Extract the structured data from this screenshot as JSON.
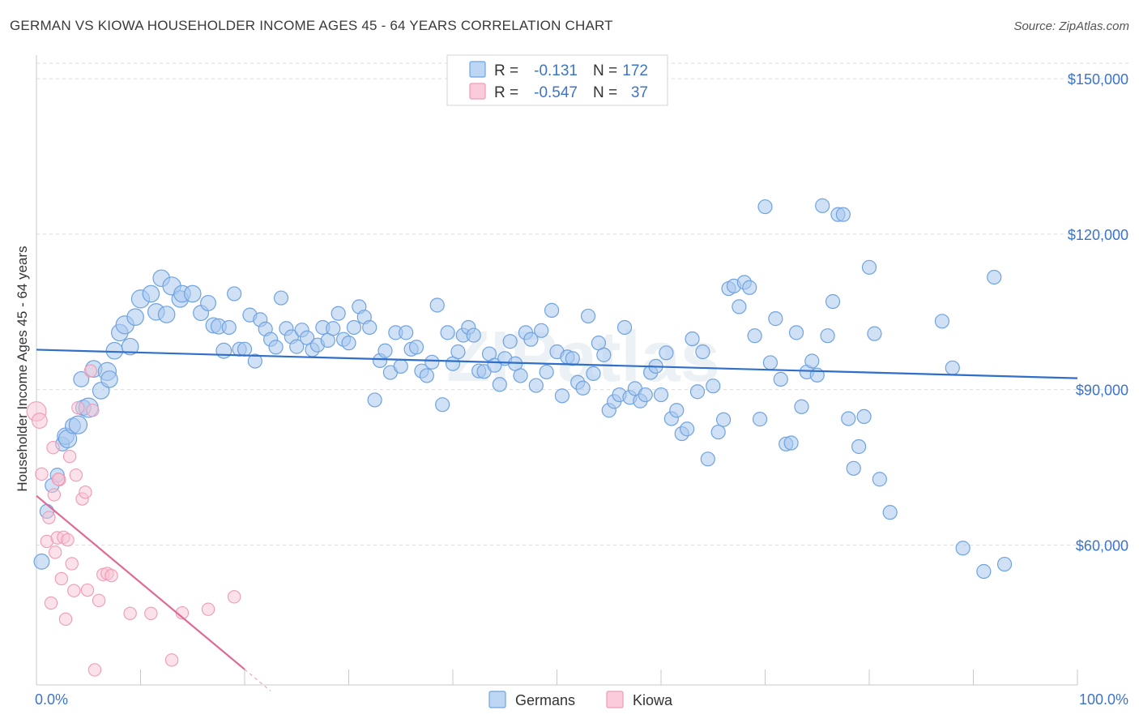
{
  "header": {
    "title": "GERMAN VS KIOWA HOUSEHOLDER INCOME AGES 45 - 64 YEARS CORRELATION CHART",
    "source": "Source: ZipAtlas.com"
  },
  "watermark": "ZIPatlas",
  "legend": {
    "rows": [
      {
        "r_label": "R =",
        "r_value": "-0.131",
        "n_label": "N =",
        "n_value": "172",
        "color": "#a8c8f0"
      },
      {
        "r_label": "R =",
        "r_value": "-0.547",
        "n_label": "N =",
        "n_value": "37",
        "color": "#f4b6c9"
      }
    ]
  },
  "bottom_legend": [
    {
      "label": "Germans",
      "color": "#a8c8f0"
    },
    {
      "label": "Kiowa",
      "color": "#f4b6c9"
    }
  ],
  "chart_data": {
    "type": "scatter",
    "title": "GERMAN VS KIOWA HOUSEHOLDER INCOME AGES 45 - 64 YEARS CORRELATION CHART",
    "xlabel": "",
    "ylabel": "Householder Income Ages 45 - 64 years",
    "xlim": [
      0,
      100
    ],
    "ylim": [
      33000,
      153000
    ],
    "x_tick_labels": [
      "0.0%",
      "100.0%"
    ],
    "y_ticks": [
      60000,
      90000,
      120000,
      150000
    ],
    "y_tick_labels": [
      "$60,000",
      "$90,000",
      "$120,000",
      "$150,000"
    ],
    "grid": true,
    "legend_position": "top-center",
    "colors": {
      "germans": "#6fa3e0",
      "germans_line": "#2f6fc9",
      "kiowa": "#f09ab6",
      "kiowa_line": "#e06a95"
    },
    "series": [
      {
        "name": "Germans",
        "trend": {
          "x": [
            0,
            100
          ],
          "y": [
            97700,
            92200
          ]
        },
        "points": [
          [
            0.5,
            56800,
            11
          ],
          [
            1.0,
            66500,
            10
          ],
          [
            1.5,
            71500,
            10
          ],
          [
            2,
            73500,
            10
          ],
          [
            2.5,
            79500,
            10
          ],
          [
            2.8,
            81000,
            12
          ],
          [
            3,
            80500,
            13
          ],
          [
            3.5,
            83000,
            11
          ],
          [
            4,
            83200,
            13
          ],
          [
            4.5,
            86500,
            11
          ],
          [
            5,
            86500,
            14
          ],
          [
            4.3,
            92000,
            11
          ],
          [
            5.5,
            94000,
            12
          ],
          [
            6.2,
            89800,
            12
          ],
          [
            6.8,
            93500,
            13
          ],
          [
            7,
            92000,
            12
          ],
          [
            7.5,
            97500,
            12
          ],
          [
            8,
            101000,
            12
          ],
          [
            8.5,
            102500,
            13
          ],
          [
            9,
            98300,
            12
          ],
          [
            9.5,
            104000,
            12
          ],
          [
            10,
            107500,
            13
          ],
          [
            11,
            108500,
            12
          ],
          [
            11.5,
            105000,
            12
          ],
          [
            12,
            111500,
            12
          ],
          [
            12.5,
            104500,
            12
          ],
          [
            13,
            110000,
            13
          ],
          [
            13.8,
            107500,
            12
          ],
          [
            14,
            108500,
            12
          ],
          [
            15,
            108500,
            12
          ],
          [
            15.8,
            104800,
            11
          ],
          [
            16.5,
            106700,
            11
          ],
          [
            17,
            102400,
            11
          ],
          [
            17.5,
            102200,
            11
          ],
          [
            18,
            97500,
            11
          ],
          [
            18.5,
            102000,
            10
          ],
          [
            19,
            108500,
            10
          ],
          [
            19.5,
            97800,
            10
          ],
          [
            20,
            97800,
            10
          ],
          [
            20.5,
            104400,
            10
          ],
          [
            21,
            95500,
            10
          ],
          [
            21.5,
            103500,
            10
          ],
          [
            22,
            101700,
            10
          ],
          [
            22.5,
            99700,
            10
          ],
          [
            23,
            98200,
            10
          ],
          [
            23.5,
            107700,
            10
          ],
          [
            24,
            101800,
            10
          ],
          [
            24.5,
            100200,
            10
          ],
          [
            25,
            98300,
            10
          ],
          [
            25.5,
            101500,
            10
          ],
          [
            26,
            100000,
            10
          ],
          [
            26.5,
            97700,
            10
          ],
          [
            27,
            98600,
            10
          ],
          [
            27.5,
            102000,
            10
          ],
          [
            28,
            99500,
            10
          ],
          [
            28.5,
            101800,
            10
          ],
          [
            29,
            104700,
            10
          ],
          [
            29.5,
            99700,
            10
          ],
          [
            30,
            99000,
            10
          ],
          [
            30.5,
            102000,
            10
          ],
          [
            31,
            106000,
            10
          ],
          [
            31.5,
            104000,
            10
          ],
          [
            32,
            102000,
            10
          ],
          [
            32.5,
            88000,
            10
          ],
          [
            33,
            95600,
            10
          ],
          [
            33.5,
            97500,
            10
          ],
          [
            34,
            93300,
            10
          ],
          [
            34.5,
            101000,
            10
          ],
          [
            35,
            94500,
            10
          ],
          [
            35.5,
            101000,
            10
          ],
          [
            36,
            97800,
            10
          ],
          [
            36.5,
            98200,
            10
          ],
          [
            37,
            93600,
            10
          ],
          [
            37.5,
            92700,
            10
          ],
          [
            38,
            95300,
            10
          ],
          [
            38.5,
            106300,
            10
          ],
          [
            39,
            87100,
            10
          ],
          [
            39.5,
            101000,
            10
          ],
          [
            40,
            95000,
            10
          ],
          [
            40.5,
            97300,
            10
          ],
          [
            41,
            100500,
            10
          ],
          [
            41.5,
            102000,
            10
          ],
          [
            42,
            100500,
            10
          ],
          [
            42.5,
            93600,
            10
          ],
          [
            43,
            93500,
            10
          ],
          [
            43.5,
            96900,
            10
          ],
          [
            44,
            94700,
            10
          ],
          [
            44.5,
            91000,
            10
          ],
          [
            45,
            96000,
            10
          ],
          [
            45.5,
            99300,
            10
          ],
          [
            46,
            95000,
            10
          ],
          [
            46.5,
            92700,
            10
          ],
          [
            47,
            101000,
            10
          ],
          [
            47.5,
            99700,
            10
          ],
          [
            48,
            90800,
            10
          ],
          [
            48.5,
            101400,
            10
          ],
          [
            49,
            93400,
            10
          ],
          [
            49.5,
            105300,
            10
          ],
          [
            50,
            97300,
            10
          ],
          [
            50.5,
            88800,
            10
          ],
          [
            51,
            96300,
            10
          ],
          [
            51.5,
            96000,
            10
          ],
          [
            52,
            91400,
            10
          ],
          [
            52.5,
            90300,
            10
          ],
          [
            53,
            104200,
            10
          ],
          [
            53.5,
            93100,
            10
          ],
          [
            54,
            99000,
            10
          ],
          [
            54.5,
            96700,
            10
          ],
          [
            55,
            86000,
            10
          ],
          [
            55.5,
            87700,
            10
          ],
          [
            56,
            89000,
            10
          ],
          [
            56.5,
            102000,
            10
          ],
          [
            57,
            88500,
            10
          ],
          [
            57.5,
            90200,
            10
          ],
          [
            58,
            87800,
            10
          ],
          [
            58.5,
            89000,
            10
          ],
          [
            59,
            93300,
            10
          ],
          [
            59.5,
            94500,
            10
          ],
          [
            60,
            89000,
            10
          ],
          [
            60.5,
            97100,
            10
          ],
          [
            61,
            84400,
            10
          ],
          [
            61.5,
            86000,
            10
          ],
          [
            62,
            81500,
            10
          ],
          [
            62.5,
            82400,
            10
          ],
          [
            63,
            99800,
            10
          ],
          [
            63.5,
            89600,
            10
          ],
          [
            64,
            97300,
            10
          ],
          [
            64.5,
            76600,
            10
          ],
          [
            65,
            90700,
            10
          ],
          [
            65.5,
            81800,
            10
          ],
          [
            66,
            84200,
            10
          ],
          [
            66.5,
            109500,
            10
          ],
          [
            67,
            110000,
            10
          ],
          [
            67.5,
            106000,
            10
          ],
          [
            68,
            110700,
            10
          ],
          [
            68.5,
            109700,
            10
          ],
          [
            69,
            100400,
            10
          ],
          [
            69.5,
            84300,
            10
          ],
          [
            70,
            125300,
            10
          ],
          [
            70.5,
            95200,
            10
          ],
          [
            71,
            103700,
            10
          ],
          [
            71.5,
            92000,
            10
          ],
          [
            72,
            79500,
            10
          ],
          [
            72.5,
            79700,
            10
          ],
          [
            73,
            101000,
            10
          ],
          [
            73.5,
            86700,
            10
          ],
          [
            74,
            93400,
            10
          ],
          [
            74.5,
            95500,
            10
          ],
          [
            75,
            92800,
            10
          ],
          [
            75.5,
            125500,
            10
          ],
          [
            76,
            100400,
            10
          ],
          [
            76.5,
            107000,
            10
          ],
          [
            77,
            123800,
            10
          ],
          [
            77.5,
            123800,
            10
          ],
          [
            78,
            84400,
            10
          ],
          [
            78.5,
            74800,
            10
          ],
          [
            79,
            79000,
            10
          ],
          [
            79.5,
            84800,
            10
          ],
          [
            80,
            113600,
            10
          ],
          [
            80.5,
            100800,
            10
          ],
          [
            81,
            72700,
            10
          ],
          [
            82,
            66300,
            10
          ],
          [
            87,
            103200,
            10
          ],
          [
            88,
            94200,
            10
          ],
          [
            89,
            59400,
            10
          ],
          [
            91,
            54900,
            10
          ],
          [
            92,
            111700,
            10
          ],
          [
            93,
            56300,
            10
          ]
        ]
      },
      {
        "name": "Kiowa",
        "trend": {
          "x": [
            0,
            20
          ],
          "y": [
            69500,
            36000
          ]
        },
        "points": [
          [
            0,
            85800,
            14
          ],
          [
            0.3,
            84000,
            11
          ],
          [
            0.5,
            73700,
            9
          ],
          [
            1,
            60700,
            9
          ],
          [
            1.2,
            65300,
            9
          ],
          [
            1.4,
            48800,
            9
          ],
          [
            1.6,
            78800,
            9
          ],
          [
            1.8,
            58600,
            9
          ],
          [
            2,
            61400,
            9
          ],
          [
            2.2,
            72600,
            9
          ],
          [
            2.4,
            53500,
            9
          ],
          [
            2.6,
            61500,
            9
          ],
          [
            2.8,
            45700,
            9
          ],
          [
            3,
            61000,
            9
          ],
          [
            3.2,
            77100,
            9
          ],
          [
            3.4,
            56400,
            9
          ],
          [
            3.6,
            51200,
            9
          ],
          [
            3.8,
            73500,
            9
          ],
          [
            4,
            86500,
            9
          ],
          [
            4.4,
            68900,
            9
          ],
          [
            4.7,
            70200,
            9
          ],
          [
            4.9,
            51300,
            9
          ],
          [
            5.2,
            93600,
            9
          ],
          [
            5.4,
            86000,
            9
          ],
          [
            5.6,
            35900,
            9
          ],
          [
            6,
            49300,
            9
          ],
          [
            6.4,
            54300,
            9
          ],
          [
            6.8,
            54500,
            9
          ],
          [
            7.2,
            54100,
            9
          ],
          [
            9,
            46800,
            9
          ],
          [
            11,
            46800,
            9
          ],
          [
            13,
            37800,
            9
          ],
          [
            14,
            46900,
            9
          ],
          [
            16.5,
            47600,
            9
          ],
          [
            19,
            50000,
            9
          ],
          [
            2.1,
            72700,
            9
          ],
          [
            1.7,
            69700,
            9
          ]
        ]
      }
    ]
  }
}
